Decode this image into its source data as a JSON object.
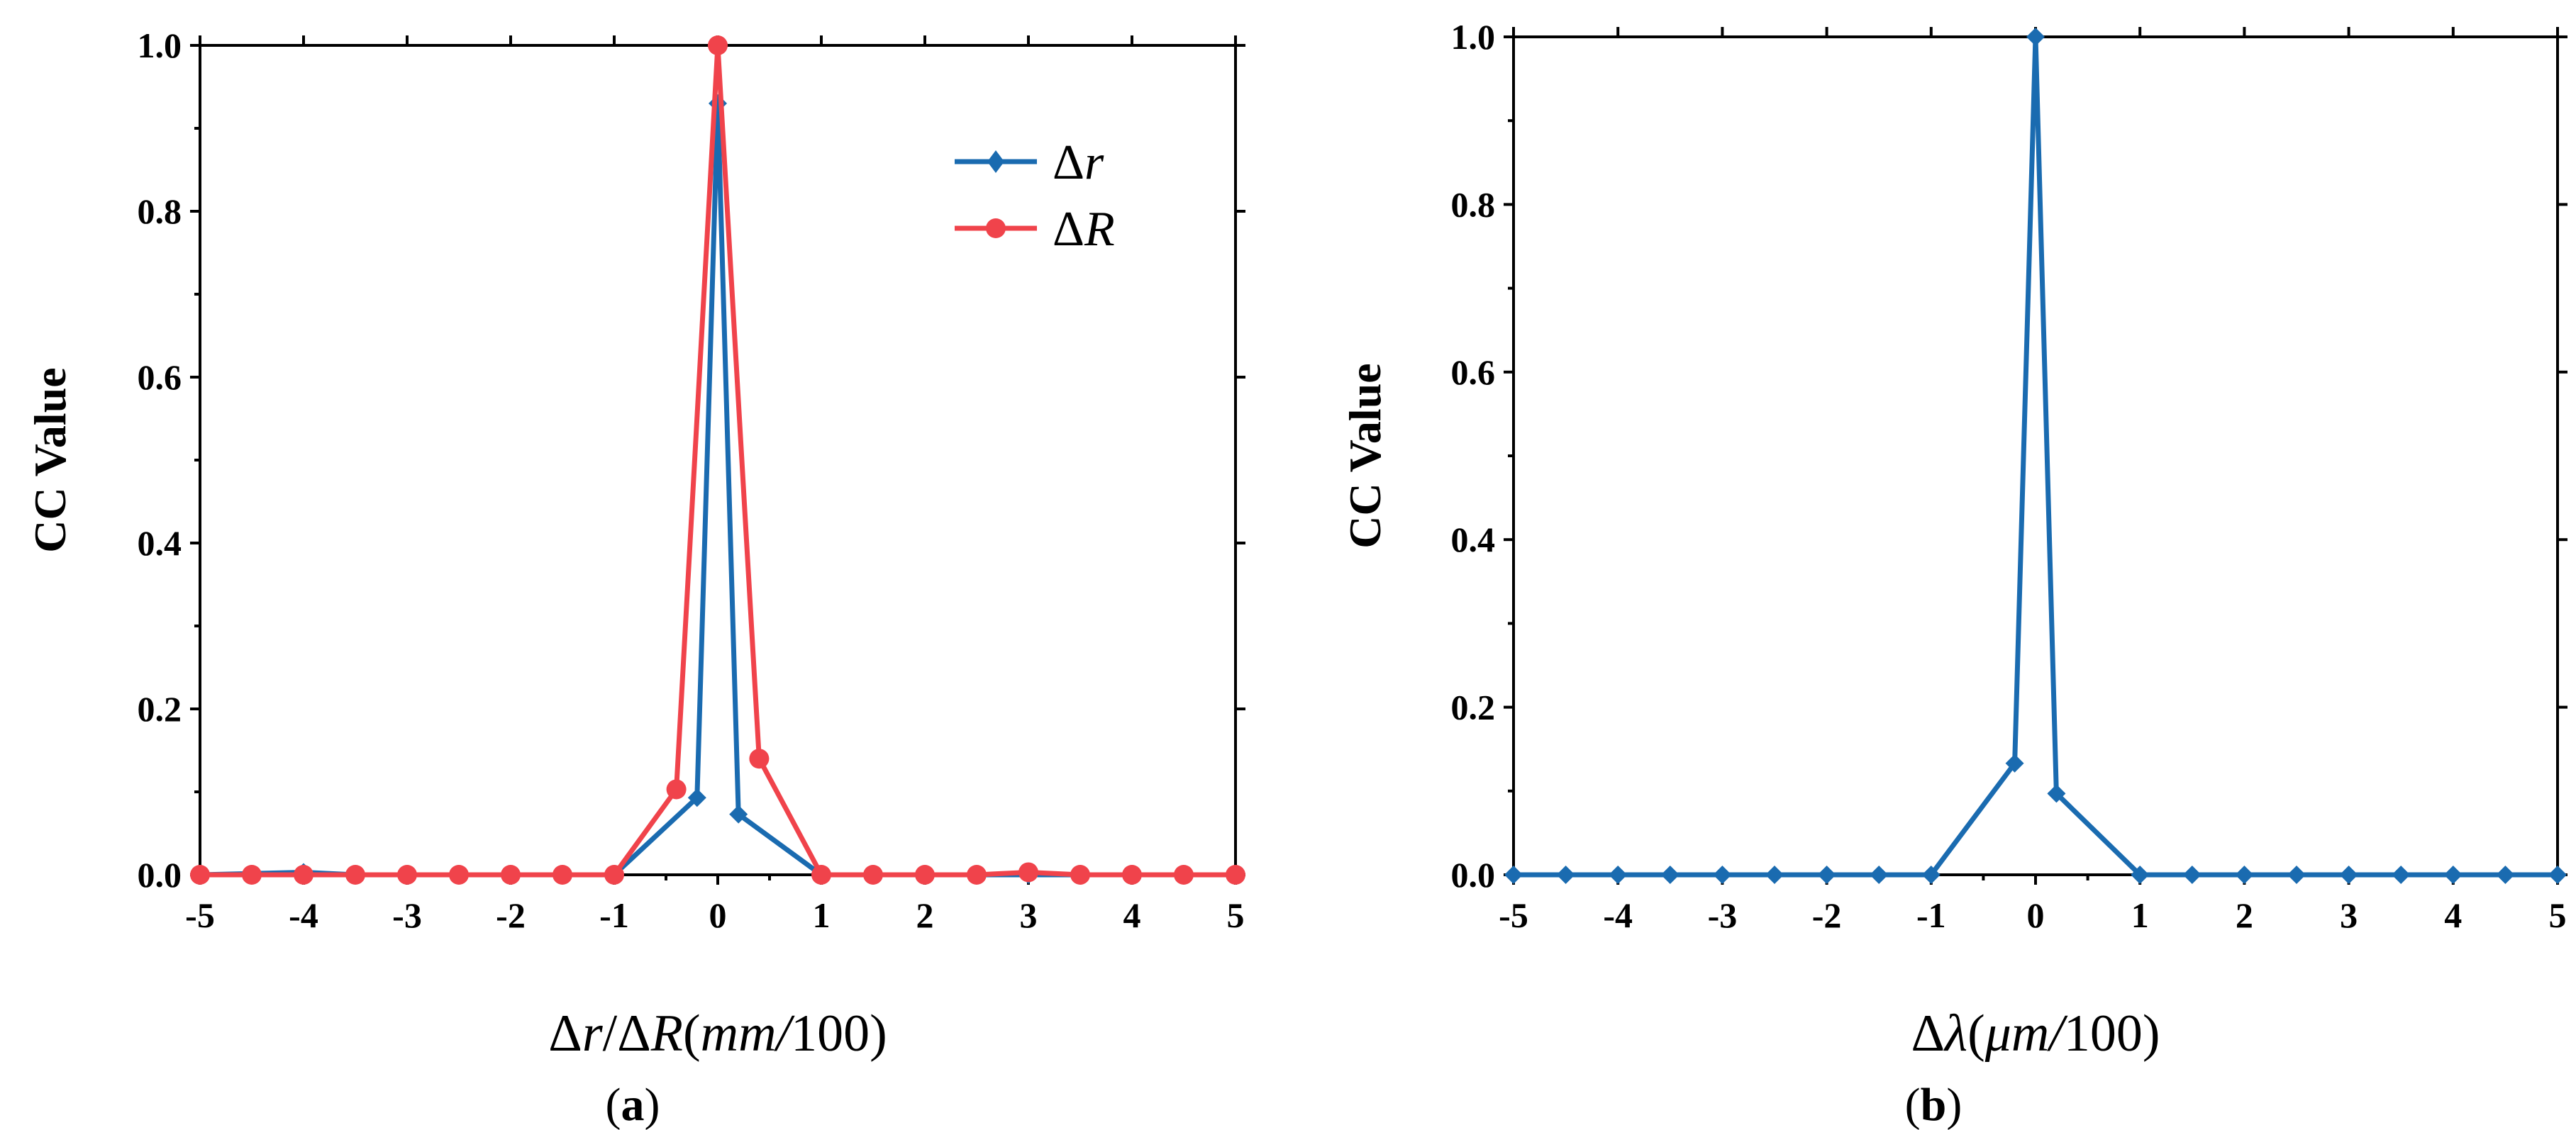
{
  "chart_data": [
    {
      "panel": "a",
      "type": "line",
      "title": "",
      "xlabel": "Δr/ΔR(mm/100)",
      "ylabel": "CC Value",
      "xlim": [
        -5,
        5
      ],
      "ylim": [
        0,
        1
      ],
      "xticks": [
        -5,
        -4,
        -3,
        -2,
        -1,
        0,
        1,
        2,
        3,
        4,
        5
      ],
      "yticks": [
        0.0,
        0.2,
        0.4,
        0.6,
        0.8,
        1.0
      ],
      "xtick_labels": [
        "-5",
        "-4",
        "-3",
        "-2",
        "-1",
        "0",
        "1",
        "2",
        "3",
        "4",
        "5"
      ],
      "ytick_labels": [
        "0.0",
        "0.2",
        "0.4",
        "0.6",
        "0.8",
        "1.0"
      ],
      "legend": "top-right",
      "series": [
        {
          "name": "Δr",
          "color": "#1a6bb0",
          "marker": "diamond",
          "x": [
            -5,
            -4,
            -3.5,
            -3,
            -2,
            -1,
            -0.2,
            0,
            0.2,
            1,
            2,
            3,
            4,
            5
          ],
          "y": [
            0.0,
            0.003,
            0.0,
            0.0,
            0.0,
            0.0,
            0.093,
            0.93,
            0.073,
            0.0,
            0.0,
            0.0,
            0.0,
            0.0
          ]
        },
        {
          "name": "ΔR",
          "color": "#f0434b",
          "marker": "circle",
          "x": [
            -5,
            -4.5,
            -4,
            -3.5,
            -3,
            -2.5,
            -2,
            -1.5,
            -1,
            -0.4,
            0,
            0.4,
            1,
            1.5,
            2,
            2.5,
            3,
            3.5,
            4,
            4.5,
            5
          ],
          "y": [
            0.0,
            0.0,
            0.0,
            0.0,
            0.0,
            0.0,
            0.0,
            0.0,
            0.0,
            0.103,
            1.0,
            0.14,
            0.0,
            0.0,
            0.0,
            0.0,
            0.003,
            0.0,
            0.0,
            0.0,
            0.0
          ]
        }
      ]
    },
    {
      "panel": "b",
      "type": "line",
      "title": "",
      "xlabel": "Δλ(μm/100)",
      "ylabel": "CC Value",
      "xlim": [
        -5,
        5
      ],
      "ylim": [
        0,
        1
      ],
      "xticks": [
        -5,
        -4,
        -3,
        -2,
        -1,
        0,
        1,
        2,
        3,
        4,
        5
      ],
      "yticks": [
        0.0,
        0.2,
        0.4,
        0.6,
        0.8,
        1.0
      ],
      "xtick_labels": [
        "-5",
        "-4",
        "-3",
        "-2",
        "-1",
        "0",
        "1",
        "2",
        "3",
        "4",
        "5"
      ],
      "ytick_labels": [
        "0.0",
        "0.2",
        "0.4",
        "0.6",
        "0.8",
        "1.0"
      ],
      "series": [
        {
          "name": "Δλ",
          "color": "#1a6bb0",
          "marker": "diamond",
          "x": [
            -5,
            -4.5,
            -4,
            -3.5,
            -3,
            -2.5,
            -2,
            -1.5,
            -1,
            -0.2,
            0,
            0.2,
            1,
            1.5,
            2,
            2.5,
            3,
            3.5,
            4,
            4.5,
            5
          ],
          "y": [
            0.0,
            0.0,
            0.0,
            0.0,
            0.0,
            0.0,
            0.0,
            0.0,
            0.0,
            0.133,
            1.0,
            0.097,
            0.0,
            0.0,
            0.0,
            0.0,
            0.0,
            0.0,
            0.0,
            0.0,
            0.0
          ]
        }
      ]
    }
  ],
  "captions": {
    "a": {
      "open": "(",
      "letter": "a",
      "close": ")"
    },
    "b": {
      "open": "(",
      "letter": "b",
      "close": ")"
    }
  },
  "axis_labels": {
    "a": {
      "delta1": "Δ",
      "var1": "r",
      "slash": "/",
      "delta2": "Δ",
      "var2": "R",
      "open": "(",
      "unit": "mm",
      "unit_slash": "/",
      "scale": "100",
      "close": ")"
    },
    "b": {
      "delta1": "Δ",
      "var1": "λ",
      "open": "(",
      "unit": "μm",
      "unit_slash": "/",
      "scale": "100",
      "close": ")"
    }
  },
  "legend": {
    "r_delta": "Δ",
    "r_var": "r",
    "R_delta": "Δ",
    "R_var": "R"
  }
}
